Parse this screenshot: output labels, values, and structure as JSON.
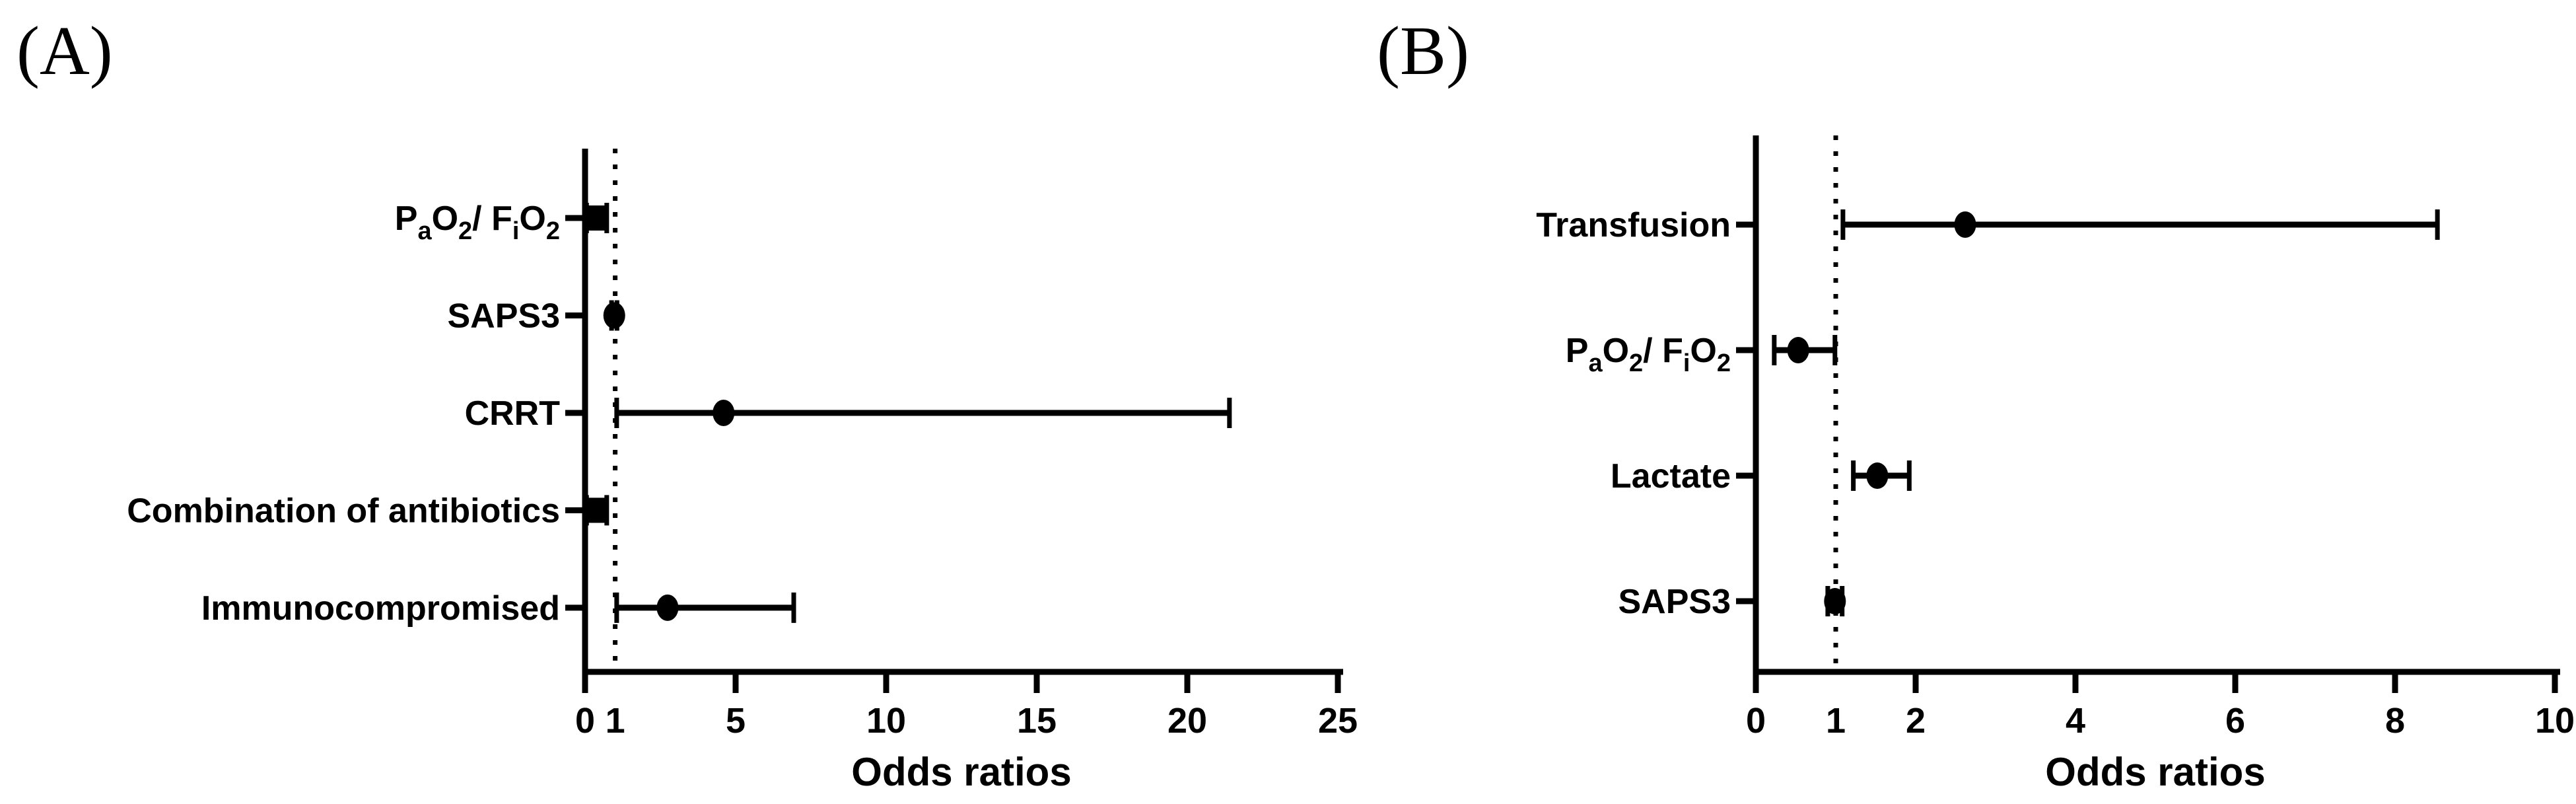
{
  "colors": {
    "ink": "#000000",
    "background": "#ffffff"
  },
  "chart_data": [
    {
      "type": "forest",
      "panel_label": "(A)",
      "xlabel": "Odds ratios",
      "xlim": [
        0,
        25
      ],
      "reference_line": 1,
      "grid": false,
      "ticks": [
        {
          "v": 0,
          "label": "0",
          "mark": true
        },
        {
          "v": 1,
          "label": "1",
          "mark": false
        },
        {
          "v": 5,
          "label": "5",
          "mark": true
        },
        {
          "v": 10,
          "label": "10",
          "mark": true
        },
        {
          "v": 15,
          "label": "15",
          "mark": true
        },
        {
          "v": 20,
          "label": "20",
          "mark": true
        },
        {
          "v": 25,
          "label": "25",
          "mark": true
        }
      ],
      "rows": [
        {
          "label": "PaO2/ FiO2",
          "label_parts": [
            {
              "t": "P"
            },
            {
              "t": "a",
              "sub": true
            },
            {
              "t": "O"
            },
            {
              "t": "2",
              "sub": true
            },
            {
              "t": "/ F"
            },
            {
              "t": "i",
              "sub": true
            },
            {
              "t": "O"
            },
            {
              "t": "2",
              "sub": true
            }
          ],
          "or": 0.4,
          "ci": [
            0.05,
            0.72
          ],
          "marker": "square"
        },
        {
          "label": "SAPS3",
          "label_parts": [
            {
              "t": "SAPS3"
            }
          ],
          "or": 0.97,
          "ci": [
            0.88,
            1.06
          ],
          "marker": "circle"
        },
        {
          "label": "CRRT",
          "label_parts": [
            {
              "t": "CRRT"
            }
          ],
          "or": 4.6,
          "ci": [
            1.05,
            21.4
          ],
          "marker": "circle"
        },
        {
          "label": "Combination of antibiotics",
          "label_parts": [
            {
              "t": "Combination of antibiotics"
            }
          ],
          "or": 0.35,
          "ci": [
            0.05,
            0.72
          ],
          "marker": "square"
        },
        {
          "label": "Immunocompromised",
          "label_parts": [
            {
              "t": "Immunocompromised"
            }
          ],
          "or": 2.74,
          "ci": [
            1.05,
            6.93
          ],
          "marker": "circle"
        }
      ]
    },
    {
      "type": "forest",
      "panel_label": "(B)",
      "xlabel": "Odds ratios",
      "xlim": [
        0,
        10
      ],
      "reference_line": 1,
      "grid": false,
      "ticks": [
        {
          "v": 0,
          "label": "0",
          "mark": true
        },
        {
          "v": 1,
          "label": "1",
          "mark": false
        },
        {
          "v": 2,
          "label": "2",
          "mark": true
        },
        {
          "v": 4,
          "label": "4",
          "mark": true
        },
        {
          "v": 6,
          "label": "6",
          "mark": true
        },
        {
          "v": 8,
          "label": "8",
          "mark": true
        },
        {
          "v": 10,
          "label": "10",
          "mark": true
        }
      ],
      "rows": [
        {
          "label": "Transfusion",
          "label_parts": [
            {
              "t": "Transfusion"
            }
          ],
          "or": 2.62,
          "ci": [
            1.09,
            8.53
          ],
          "marker": "circle"
        },
        {
          "label": "PaO2/ FiO2",
          "label_parts": [
            {
              "t": "P"
            },
            {
              "t": "a",
              "sub": true
            },
            {
              "t": "O"
            },
            {
              "t": "2",
              "sub": true
            },
            {
              "t": "/ F"
            },
            {
              "t": "i",
              "sub": true
            },
            {
              "t": "O"
            },
            {
              "t": "2",
              "sub": true
            }
          ],
          "or": 0.53,
          "ci": [
            0.23,
            0.99
          ],
          "marker": "circle"
        },
        {
          "label": "Lactate",
          "label_parts": [
            {
              "t": "Lactate"
            }
          ],
          "or": 1.52,
          "ci": [
            1.22,
            1.92
          ],
          "marker": "circle"
        },
        {
          "label": "SAPS3",
          "label_parts": [
            {
              "t": "SAPS3"
            }
          ],
          "or": 0.99,
          "ci": [
            0.9,
            1.08
          ],
          "marker": "circle"
        }
      ]
    }
  ]
}
